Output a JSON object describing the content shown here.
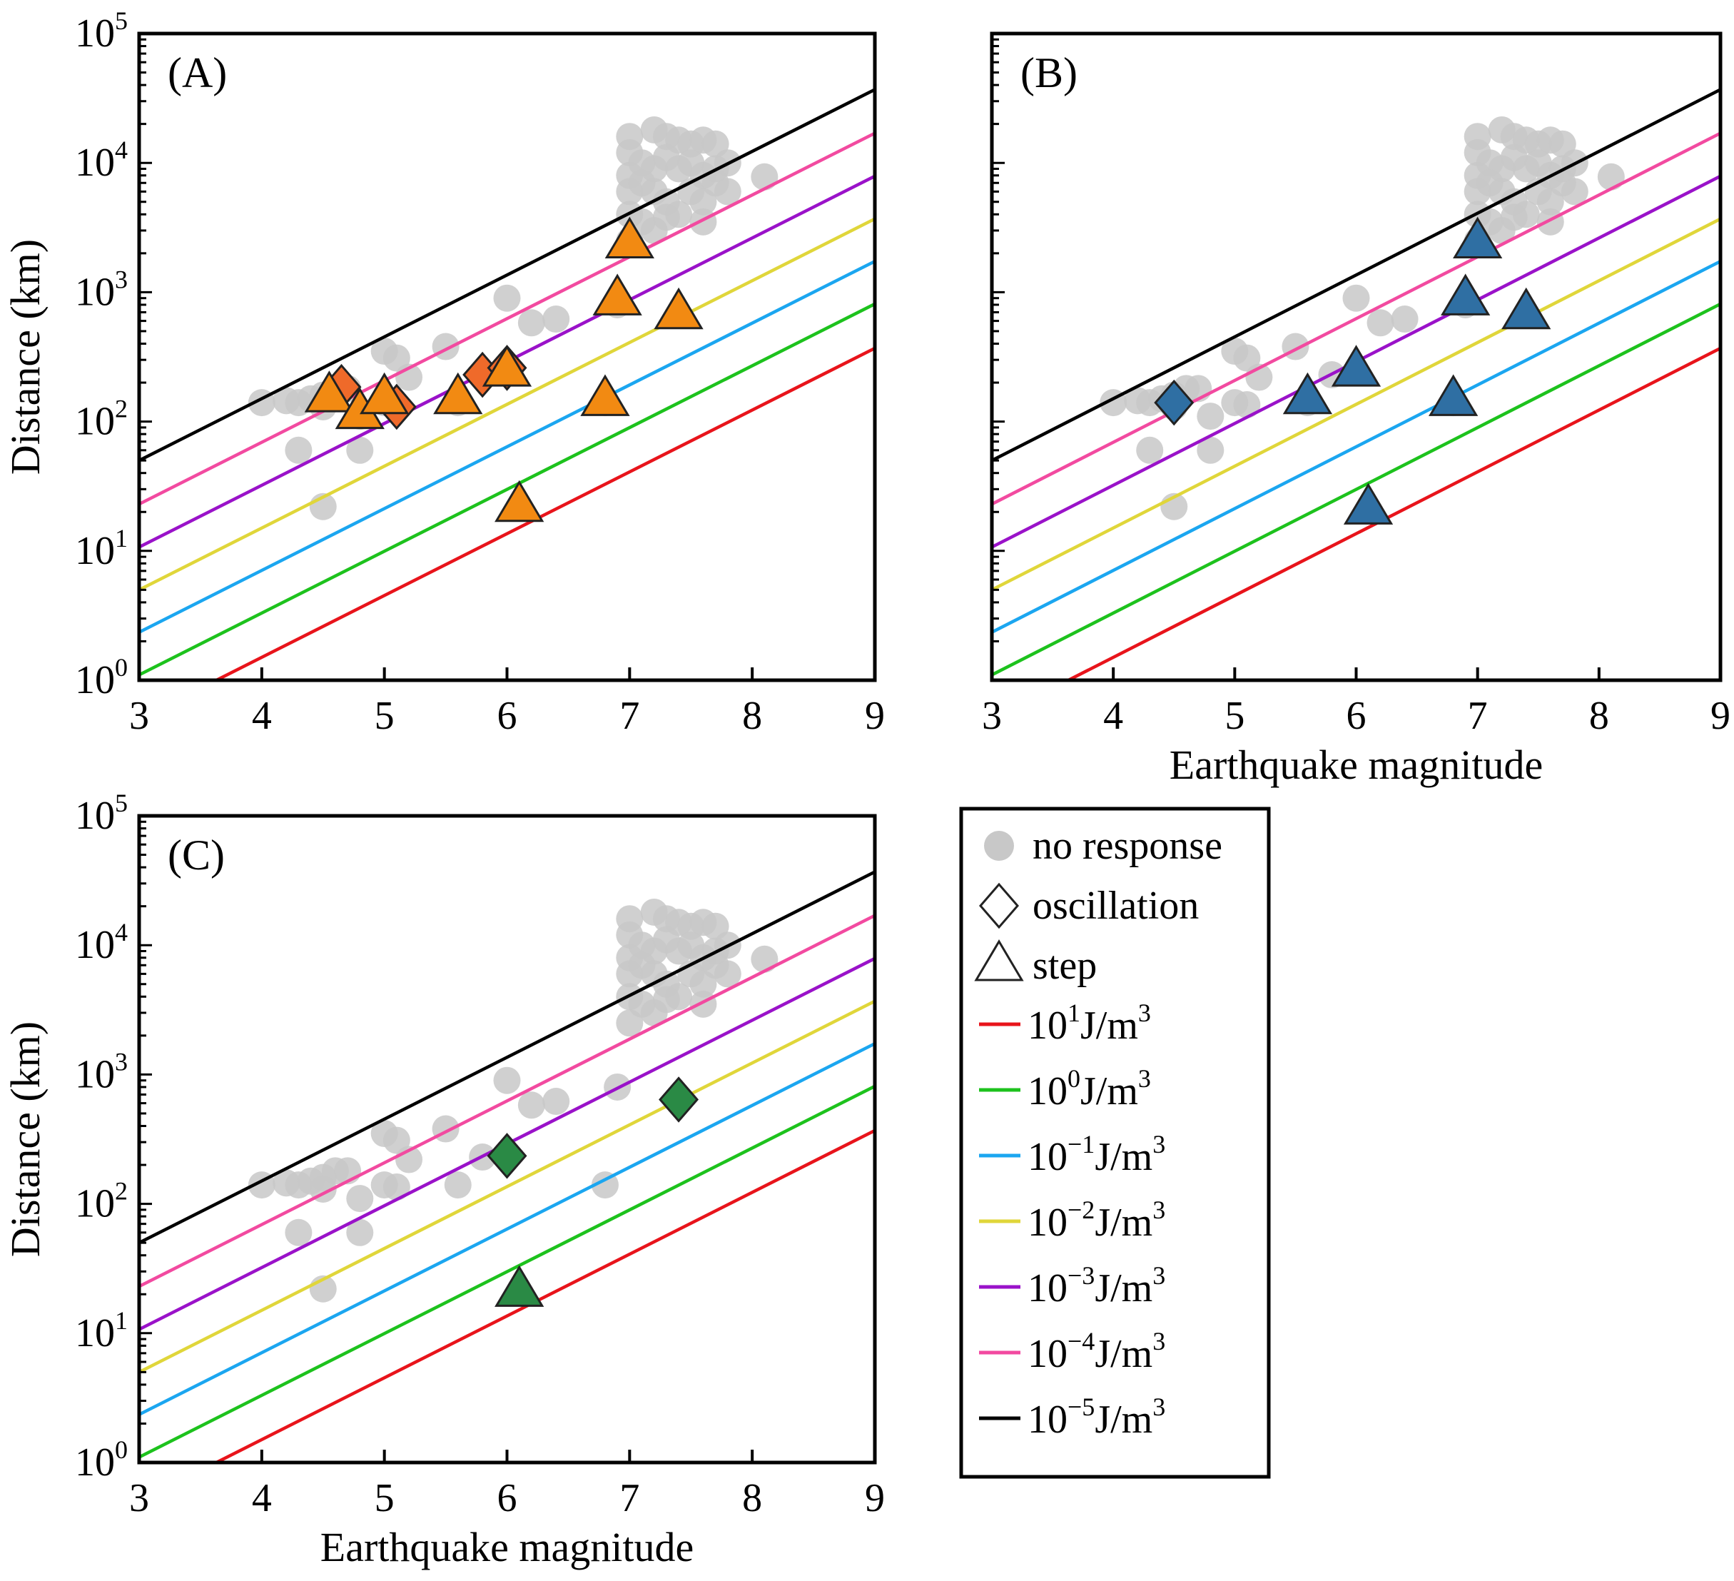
{
  "chart_data": [
    {
      "type": "scatter",
      "panel": "(A)",
      "xlabel": "",
      "ylabel": "Distance (km)",
      "xlim": [
        3,
        9
      ],
      "ylim": [
        1,
        100000
      ],
      "yscale": "log",
      "xticks": [
        "3",
        "4",
        "5",
        "6",
        "7",
        "8",
        "9"
      ],
      "steps": [
        [
          4.55,
          155
        ],
        [
          4.8,
          115
        ],
        [
          5.0,
          150
        ],
        [
          5.6,
          150
        ],
        [
          6.0,
          245
        ],
        [
          6.1,
          22
        ],
        [
          6.8,
          145
        ],
        [
          6.9,
          870
        ],
        [
          7.0,
          2400
        ],
        [
          7.4,
          680
        ]
      ],
      "oscillations": [
        [
          4.65,
          185
        ],
        [
          5.1,
          130
        ],
        [
          5.8,
          230
        ],
        [
          6.0,
          260
        ]
      ],
      "marker_color": "#f28a12",
      "diamond_color": "#ef6a2a"
    },
    {
      "type": "scatter",
      "panel": "(B)",
      "xlabel": "Earthquake magnitude",
      "ylabel": "",
      "xlim": [
        3,
        9
      ],
      "ylim": [
        1,
        100000
      ],
      "yscale": "log",
      "xticks": [
        "3",
        "4",
        "5",
        "6",
        "7",
        "8",
        "9"
      ],
      "steps": [
        [
          5.6,
          150
        ],
        [
          6.0,
          245
        ],
        [
          6.1,
          21
        ],
        [
          6.8,
          145
        ],
        [
          6.9,
          870
        ],
        [
          7.0,
          2400
        ],
        [
          7.4,
          680
        ]
      ],
      "oscillations": [
        [
          4.5,
          140
        ]
      ],
      "marker_color": "#2f6fa3",
      "diamond_color": "#2f6fa3"
    },
    {
      "type": "scatter",
      "panel": "(C)",
      "xlabel": "Earthquake magnitude",
      "ylabel": "Distance (km)",
      "xlim": [
        3,
        9
      ],
      "ylim": [
        1,
        100000
      ],
      "yscale": "log",
      "xticks": [
        "3",
        "4",
        "5",
        "6",
        "7",
        "8",
        "9"
      ],
      "steps": [
        [
          6.1,
          21
        ]
      ],
      "oscillations": [
        [
          6.0,
          235
        ],
        [
          7.4,
          640
        ]
      ],
      "marker_color": "#2a8a45",
      "diamond_color": "#2a8a45"
    }
  ],
  "no_response": [
    [
      4.0,
      140
    ],
    [
      4.2,
      145
    ],
    [
      4.3,
      140
    ],
    [
      4.4,
      150
    ],
    [
      4.5,
      160
    ],
    [
      4.5,
      130
    ],
    [
      4.6,
      180
    ],
    [
      4.7,
      180
    ],
    [
      4.3,
      60
    ],
    [
      4.8,
      60
    ],
    [
      4.8,
      110
    ],
    [
      4.5,
      22
    ],
    [
      5.0,
      350
    ],
    [
      5.1,
      310
    ],
    [
      5.0,
      140
    ],
    [
      5.1,
      135
    ],
    [
      5.2,
      220
    ],
    [
      5.5,
      380
    ],
    [
      5.6,
      140
    ],
    [
      5.8,
      230
    ],
    [
      6.0,
      900
    ],
    [
      6.2,
      580
    ],
    [
      6.4,
      620
    ],
    [
      6.9,
      800
    ],
    [
      6.8,
      140
    ],
    [
      8.1,
      7800
    ],
    [
      7.0,
      16000
    ],
    [
      7.2,
      18000
    ],
    [
      7.3,
      16000
    ],
    [
      7.4,
      15000
    ],
    [
      7.5,
      14000
    ],
    [
      7.6,
      15000
    ],
    [
      7.7,
      14000
    ],
    [
      7.0,
      12000
    ],
    [
      7.1,
      10000
    ],
    [
      7.2,
      9000
    ],
    [
      7.3,
      11000
    ],
    [
      7.4,
      9000
    ],
    [
      7.5,
      10000
    ],
    [
      7.6,
      8000
    ],
    [
      7.7,
      9000
    ],
    [
      7.8,
      10000
    ],
    [
      7.0,
      8000
    ],
    [
      7.0,
      6000
    ],
    [
      7.1,
      7000
    ],
    [
      7.2,
      6000
    ],
    [
      7.3,
      5000
    ],
    [
      7.5,
      6000
    ],
    [
      7.6,
      5000
    ],
    [
      7.8,
      6000
    ],
    [
      7.0,
      4000
    ],
    [
      7.1,
      3500
    ],
    [
      7.2,
      3000
    ],
    [
      7.4,
      4000
    ],
    [
      7.6,
      3500
    ],
    [
      7.0,
      2500
    ],
    [
      7.7,
      7000
    ],
    [
      7.3,
      3800
    ]
  ],
  "energy_lines": [
    {
      "label_base": "10",
      "exp": "1",
      "unit": "J/m",
      "unit_exp": "3",
      "color": "#e8141b",
      "d_at_m3": 0.5
    },
    {
      "label_base": "10",
      "exp": "0",
      "unit": "J/m",
      "unit_exp": "3",
      "color": "#1dc21d",
      "d_at_m3": 1.1
    },
    {
      "label_base": "10",
      "exp": "−1",
      "unit": "J/m",
      "unit_exp": "3",
      "color": "#1ba6f0",
      "d_at_m3": 2.35
    },
    {
      "label_base": "10",
      "exp": "−2",
      "unit": "J/m",
      "unit_exp": "3",
      "color": "#e0d63a",
      "d_at_m3": 5.0
    },
    {
      "label_base": "10",
      "exp": "−3",
      "unit": "J/m",
      "unit_exp": "3",
      "color": "#9a12c9",
      "d_at_m3": 10.7
    },
    {
      "label_base": "10",
      "exp": "−4",
      "unit": "J/m",
      "unit_exp": "3",
      "color": "#f24aa0",
      "d_at_m3": 23
    },
    {
      "label_base": "10",
      "exp": "−5",
      "unit": "J/m",
      "unit_exp": "3",
      "color": "#000000",
      "d_at_m3": 50
    }
  ],
  "line_slope_log_per_mag": 0.478,
  "legend": {
    "no_response": "no response",
    "oscillation": "oscillation",
    "step": "step"
  },
  "yticks": [
    {
      "base": "10",
      "exp": "0"
    },
    {
      "base": "10",
      "exp": "1"
    },
    {
      "base": "10",
      "exp": "2"
    },
    {
      "base": "10",
      "exp": "3"
    },
    {
      "base": "10",
      "exp": "4"
    },
    {
      "base": "10",
      "exp": "5"
    }
  ],
  "grey": "#c8c8c8"
}
